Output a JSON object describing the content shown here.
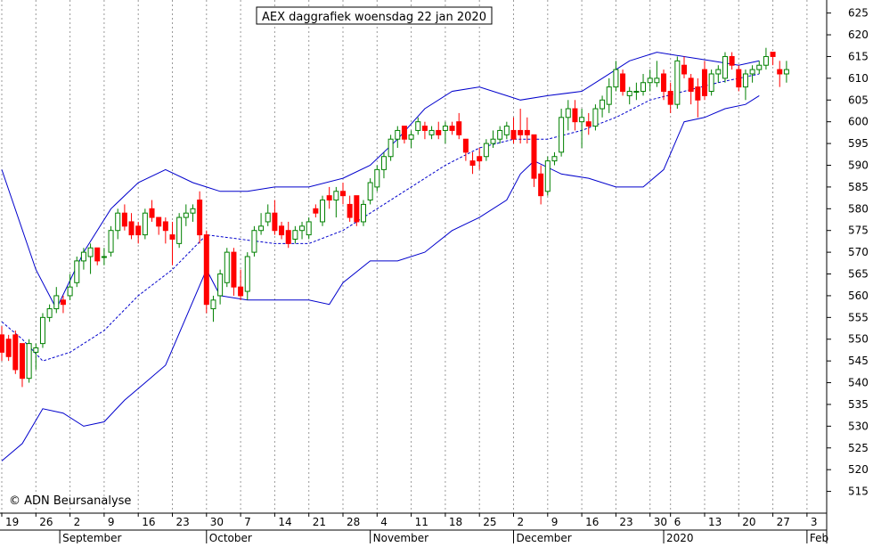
{
  "chart_data": {
    "type": "candlestick",
    "title": "AEX daggrafiek woensdag 22 jan 2020",
    "copyright": "© ADN Beursanalyse",
    "ylim": [
      510,
      628
    ],
    "y_ticks": [
      515,
      520,
      525,
      530,
      535,
      540,
      545,
      550,
      555,
      560,
      565,
      570,
      575,
      580,
      585,
      590,
      595,
      600,
      605,
      610,
      615,
      620,
      625
    ],
    "grid": true,
    "date_ticks": [
      {
        "label": "19",
        "x": 0
      },
      {
        "label": "26",
        "x": 5
      },
      {
        "label": "2",
        "x": 10
      },
      {
        "label": "9",
        "x": 15
      },
      {
        "label": "16",
        "x": 20
      },
      {
        "label": "23",
        "x": 25
      },
      {
        "label": "30",
        "x": 30
      },
      {
        "label": "7",
        "x": 35
      },
      {
        "label": "14",
        "x": 40
      },
      {
        "label": "21",
        "x": 45
      },
      {
        "label": "28",
        "x": 50
      },
      {
        "label": "4",
        "x": 55
      },
      {
        "label": "11",
        "x": 60
      },
      {
        "label": "18",
        "x": 65
      },
      {
        "label": "25",
        "x": 70
      },
      {
        "label": "2",
        "x": 75
      },
      {
        "label": "9",
        "x": 80
      },
      {
        "label": "16",
        "x": 85
      },
      {
        "label": "23",
        "x": 90
      },
      {
        "label": "30",
        "x": 95
      },
      {
        "label": "6",
        "x": 98
      },
      {
        "label": "13",
        "x": 103
      },
      {
        "label": "20",
        "x": 108
      },
      {
        "label": "27",
        "x": 113
      },
      {
        "label": "3",
        "x": 118
      }
    ],
    "month_labels": [
      {
        "label": "September",
        "x": 8.5
      },
      {
        "label": "October",
        "x": 30
      },
      {
        "label": "November",
        "x": 54
      },
      {
        "label": "December",
        "x": 75
      },
      {
        "label": "2020",
        "x": 97
      },
      {
        "label": "Feb",
        "x": 118
      }
    ],
    "x_domain": [
      0,
      121
    ],
    "candles": [
      {
        "o": 551,
        "h": 553,
        "l": 545,
        "c": 547
      },
      {
        "o": 550,
        "h": 551,
        "l": 545,
        "c": 546
      },
      {
        "o": 551,
        "h": 552,
        "l": 542,
        "c": 543
      },
      {
        "o": 549,
        "h": 549,
        "l": 539,
        "c": 541
      },
      {
        "o": 541,
        "h": 550,
        "l": 540,
        "c": 549
      },
      {
        "o": 547,
        "h": 549,
        "l": 543,
        "c": 548
      },
      {
        "o": 549,
        "h": 556,
        "l": 548,
        "c": 555
      },
      {
        "o": 555,
        "h": 558,
        "l": 554,
        "c": 557
      },
      {
        "o": 557,
        "h": 562,
        "l": 556,
        "c": 560
      },
      {
        "o": 559,
        "h": 560,
        "l": 556,
        "c": 558
      },
      {
        "o": 560,
        "h": 565,
        "l": 559,
        "c": 562
      },
      {
        "o": 563,
        "h": 569,
        "l": 562,
        "c": 568
      },
      {
        "o": 568,
        "h": 571,
        "l": 566,
        "c": 570
      },
      {
        "o": 569,
        "h": 572,
        "l": 565,
        "c": 571
      },
      {
        "o": 571,
        "h": 571,
        "l": 567,
        "c": 568
      },
      {
        "o": 569,
        "h": 571,
        "l": 567,
        "c": 569
      },
      {
        "o": 570,
        "h": 576,
        "l": 569,
        "c": 575
      },
      {
        "o": 575,
        "h": 580,
        "l": 573,
        "c": 579
      },
      {
        "o": 579,
        "h": 581,
        "l": 575,
        "c": 576
      },
      {
        "o": 577,
        "h": 579,
        "l": 573,
        "c": 574
      },
      {
        "o": 576,
        "h": 577,
        "l": 572,
        "c": 574
      },
      {
        "o": 574,
        "h": 580,
        "l": 573,
        "c": 579
      },
      {
        "o": 580,
        "h": 582,
        "l": 577,
        "c": 578
      },
      {
        "o": 578,
        "h": 578,
        "l": 574,
        "c": 576
      },
      {
        "o": 577,
        "h": 578,
        "l": 572,
        "c": 575
      },
      {
        "o": 574,
        "h": 577,
        "l": 567,
        "c": 573
      },
      {
        "o": 572,
        "h": 579,
        "l": 571,
        "c": 578
      },
      {
        "o": 578,
        "h": 581,
        "l": 576,
        "c": 579
      },
      {
        "o": 579,
        "h": 581,
        "l": 577,
        "c": 580
      },
      {
        "o": 582,
        "h": 584,
        "l": 572,
        "c": 574
      },
      {
        "o": 574,
        "h": 575,
        "l": 556,
        "c": 558
      },
      {
        "o": 557,
        "h": 560,
        "l": 554,
        "c": 559
      },
      {
        "o": 560,
        "h": 566,
        "l": 558,
        "c": 565
      },
      {
        "o": 563,
        "h": 571,
        "l": 562,
        "c": 570
      },
      {
        "o": 570,
        "h": 571,
        "l": 560,
        "c": 562
      },
      {
        "o": 562,
        "h": 566,
        "l": 559,
        "c": 560
      },
      {
        "o": 561,
        "h": 570,
        "l": 559,
        "c": 569
      },
      {
        "o": 570,
        "h": 576,
        "l": 569,
        "c": 575
      },
      {
        "o": 575,
        "h": 579,
        "l": 574,
        "c": 576
      },
      {
        "o": 577,
        "h": 581,
        "l": 576,
        "c": 579
      },
      {
        "o": 579,
        "h": 582,
        "l": 574,
        "c": 575
      },
      {
        "o": 576,
        "h": 577,
        "l": 573,
        "c": 574
      },
      {
        "o": 575,
        "h": 577,
        "l": 571,
        "c": 572
      },
      {
        "o": 573,
        "h": 576,
        "l": 572,
        "c": 575
      },
      {
        "o": 575,
        "h": 577,
        "l": 573,
        "c": 576
      },
      {
        "o": 574,
        "h": 578,
        "l": 573,
        "c": 577
      },
      {
        "o": 580,
        "h": 581,
        "l": 578,
        "c": 579
      },
      {
        "o": 577,
        "h": 583,
        "l": 576,
        "c": 582
      },
      {
        "o": 583,
        "h": 585,
        "l": 580,
        "c": 582
      },
      {
        "o": 582,
        "h": 585,
        "l": 578,
        "c": 584
      },
      {
        "o": 584,
        "h": 586,
        "l": 581,
        "c": 583
      },
      {
        "o": 581,
        "h": 583,
        "l": 577,
        "c": 578
      },
      {
        "o": 583,
        "h": 583,
        "l": 576,
        "c": 577
      },
      {
        "o": 577,
        "h": 582,
        "l": 576,
        "c": 581
      },
      {
        "o": 582,
        "h": 587,
        "l": 581,
        "c": 586
      },
      {
        "o": 585,
        "h": 590,
        "l": 584,
        "c": 589
      },
      {
        "o": 589,
        "h": 593,
        "l": 587,
        "c": 592
      },
      {
        "o": 592,
        "h": 597,
        "l": 591,
        "c": 596
      },
      {
        "o": 596,
        "h": 599,
        "l": 594,
        "c": 598
      },
      {
        "o": 599,
        "h": 599,
        "l": 595,
        "c": 596
      },
      {
        "o": 596,
        "h": 598,
        "l": 594,
        "c": 597
      },
      {
        "o": 598,
        "h": 601,
        "l": 597,
        "c": 600
      },
      {
        "o": 599,
        "h": 600,
        "l": 596,
        "c": 598
      },
      {
        "o": 597,
        "h": 599,
        "l": 596,
        "c": 598
      },
      {
        "o": 598,
        "h": 600,
        "l": 596,
        "c": 597
      },
      {
        "o": 598,
        "h": 600,
        "l": 595,
        "c": 599
      },
      {
        "o": 599,
        "h": 600,
        "l": 597,
        "c": 598
      },
      {
        "o": 600,
        "h": 602,
        "l": 596,
        "c": 597
      },
      {
        "o": 596,
        "h": 596,
        "l": 591,
        "c": 593
      },
      {
        "o": 591,
        "h": 593,
        "l": 588,
        "c": 590
      },
      {
        "o": 592,
        "h": 594,
        "l": 589,
        "c": 591
      },
      {
        "o": 592,
        "h": 596,
        "l": 591,
        "c": 595
      },
      {
        "o": 595,
        "h": 598,
        "l": 594,
        "c": 596
      },
      {
        "o": 596,
        "h": 599,
        "l": 595,
        "c": 598
      },
      {
        "o": 597,
        "h": 600,
        "l": 596,
        "c": 599
      },
      {
        "o": 598,
        "h": 601,
        "l": 595,
        "c": 596
      },
      {
        "o": 598,
        "h": 603,
        "l": 595,
        "c": 597
      },
      {
        "o": 598,
        "h": 601,
        "l": 595,
        "c": 597
      },
      {
        "o": 597,
        "h": 597,
        "l": 585,
        "c": 587
      },
      {
        "o": 588,
        "h": 590,
        "l": 581,
        "c": 583
      },
      {
        "o": 584,
        "h": 592,
        "l": 583,
        "c": 591
      },
      {
        "o": 591,
        "h": 593,
        "l": 590,
        "c": 592
      },
      {
        "o": 593,
        "h": 603,
        "l": 592,
        "c": 601
      },
      {
        "o": 601,
        "h": 605,
        "l": 598,
        "c": 603
      },
      {
        "o": 603,
        "h": 605,
        "l": 598,
        "c": 600
      },
      {
        "o": 600,
        "h": 603,
        "l": 594,
        "c": 601
      },
      {
        "o": 600,
        "h": 602,
        "l": 597,
        "c": 599
      },
      {
        "o": 599,
        "h": 604,
        "l": 598,
        "c": 603
      },
      {
        "o": 603,
        "h": 606,
        "l": 601,
        "c": 605
      },
      {
        "o": 604,
        "h": 610,
        "l": 602,
        "c": 608
      },
      {
        "o": 608,
        "h": 614,
        "l": 607,
        "c": 612
      },
      {
        "o": 611,
        "h": 612,
        "l": 606,
        "c": 607
      },
      {
        "o": 606,
        "h": 608,
        "l": 604,
        "c": 607
      },
      {
        "o": 607,
        "h": 609,
        "l": 605,
        "c": 607
      },
      {
        "o": 607,
        "h": 611,
        "l": 606,
        "c": 609
      },
      {
        "o": 609,
        "h": 612,
        "l": 607,
        "c": 610
      },
      {
        "o": 609,
        "h": 614,
        "l": 608,
        "c": 610
      },
      {
        "o": 611,
        "h": 612,
        "l": 605,
        "c": 607
      },
      {
        "o": 607,
        "h": 609,
        "l": 602,
        "c": 604
      },
      {
        "o": 604,
        "h": 615,
        "l": 603,
        "c": 614
      },
      {
        "o": 613,
        "h": 615,
        "l": 610,
        "c": 611
      },
      {
        "o": 610,
        "h": 611,
        "l": 604,
        "c": 607
      },
      {
        "o": 608,
        "h": 610,
        "l": 601,
        "c": 605
      },
      {
        "o": 612,
        "h": 614,
        "l": 605,
        "c": 606
      },
      {
        "o": 607,
        "h": 612,
        "l": 606,
        "c": 611
      },
      {
        "o": 611,
        "h": 613,
        "l": 609,
        "c": 612
      },
      {
        "o": 610,
        "h": 616,
        "l": 609,
        "c": 615
      },
      {
        "o": 615,
        "h": 616,
        "l": 612,
        "c": 613
      },
      {
        "o": 612,
        "h": 613,
        "l": 607,
        "c": 608
      },
      {
        "o": 608,
        "h": 612,
        "l": 605,
        "c": 611
      },
      {
        "o": 611,
        "h": 613,
        "l": 609,
        "c": 612
      },
      {
        "o": 612,
        "h": 614,
        "l": 611,
        "c": 613
      },
      {
        "o": 613,
        "h": 617,
        "l": 612,
        "c": 615
      },
      {
        "o": 616,
        "h": 616,
        "l": 613,
        "c": 615
      },
      {
        "o": 612,
        "h": 614,
        "l": 608,
        "c": 611
      },
      {
        "o": 611,
        "h": 614,
        "l": 609,
        "c": 612
      }
    ],
    "ma": [
      [
        0,
        554
      ],
      [
        3,
        550
      ],
      [
        6,
        545
      ],
      [
        10,
        547
      ],
      [
        15,
        552
      ],
      [
        20,
        560
      ],
      [
        25,
        566
      ],
      [
        30,
        574
      ],
      [
        35,
        573
      ],
      [
        40,
        572
      ],
      [
        45,
        572
      ],
      [
        50,
        575
      ],
      [
        55,
        580
      ],
      [
        60,
        585
      ],
      [
        65,
        590
      ],
      [
        70,
        594
      ],
      [
        75,
        596
      ],
      [
        80,
        596
      ],
      [
        85,
        598
      ],
      [
        90,
        601
      ],
      [
        95,
        605
      ],
      [
        100,
        607
      ],
      [
        105,
        609
      ],
      [
        108,
        610
      ],
      [
        111,
        611
      ]
    ],
    "upper_band": [
      [
        0,
        589
      ],
      [
        5,
        566
      ],
      [
        8,
        557
      ],
      [
        12,
        570
      ],
      [
        16,
        580
      ],
      [
        20,
        586
      ],
      [
        24,
        589
      ],
      [
        28,
        586
      ],
      [
        30,
        585
      ],
      [
        32,
        584
      ],
      [
        36,
        584
      ],
      [
        40,
        585
      ],
      [
        45,
        585
      ],
      [
        50,
        587
      ],
      [
        54,
        590
      ],
      [
        58,
        596
      ],
      [
        62,
        603
      ],
      [
        66,
        607
      ],
      [
        70,
        608
      ],
      [
        74,
        606
      ],
      [
        76,
        605
      ],
      [
        80,
        606
      ],
      [
        85,
        607
      ],
      [
        88,
        610
      ],
      [
        92,
        614
      ],
      [
        96,
        616
      ],
      [
        100,
        615
      ],
      [
        104,
        614
      ],
      [
        108,
        613
      ],
      [
        111,
        614
      ]
    ],
    "lower_band": [
      [
        0,
        522
      ],
      [
        3,
        526
      ],
      [
        6,
        534
      ],
      [
        9,
        533
      ],
      [
        12,
        530
      ],
      [
        15,
        531
      ],
      [
        18,
        536
      ],
      [
        21,
        540
      ],
      [
        24,
        544
      ],
      [
        27,
        555
      ],
      [
        30,
        566
      ],
      [
        32,
        560
      ],
      [
        36,
        559
      ],
      [
        40,
        559
      ],
      [
        45,
        559
      ],
      [
        48,
        558
      ],
      [
        50,
        563
      ],
      [
        54,
        568
      ],
      [
        58,
        568
      ],
      [
        62,
        570
      ],
      [
        66,
        575
      ],
      [
        70,
        578
      ],
      [
        74,
        582
      ],
      [
        76,
        588
      ],
      [
        78,
        591
      ],
      [
        82,
        588
      ],
      [
        86,
        587
      ],
      [
        90,
        585
      ],
      [
        94,
        585
      ],
      [
        97,
        589
      ],
      [
        100,
        600
      ],
      [
        103,
        601
      ],
      [
        106,
        603
      ],
      [
        109,
        604
      ],
      [
        111,
        606
      ]
    ],
    "colors": {
      "up": "#008000",
      "down": "#ff0000",
      "band": "#0000cc",
      "ma": "#0000cc",
      "grid": "#999999",
      "axis": "#000000"
    }
  }
}
